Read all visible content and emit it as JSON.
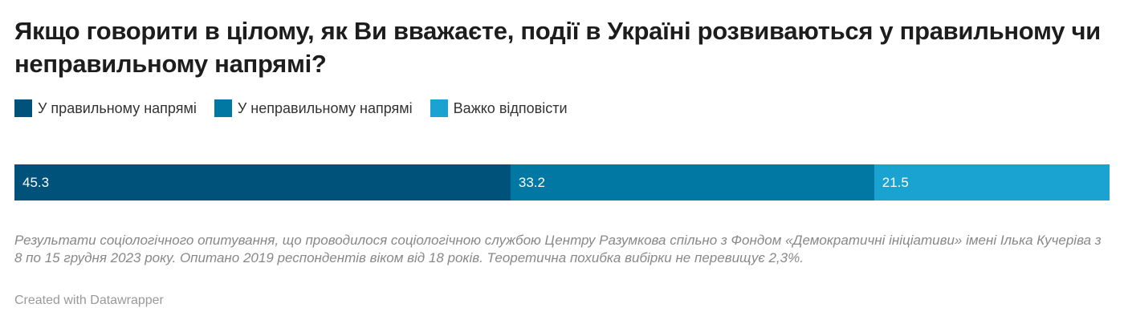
{
  "chart_data": {
    "type": "stacked-bar",
    "title": "Якщо говорити в цілому, як Ви вважаєте, події в Україні розвиваються у правильному чи неправильному напрямі?",
    "legend_placement": "top-left",
    "series": [
      {
        "name": "У правильному напрямі",
        "value": 45.3,
        "color": "#01527a"
      },
      {
        "name": "У неправильному напрямі",
        "value": 33.2,
        "color": "#0177a3"
      },
      {
        "name": "Важко відповісти",
        "value": 21.5,
        "color": "#1aa3d1"
      }
    ],
    "notes": "Результати соціологічного опитування, що проводилося соціологічною службою Центру Разумкова спільно з Фондом «Демократичні ініціативи» імені Ілька Кучеріва з 8 по 15 грудня 2023 року. Опитано 2019 респондентів віком від 18 років. Теоретична похибка вибірки не перевищує 2,3%.",
    "credit": "Created with Datawrapper"
  }
}
